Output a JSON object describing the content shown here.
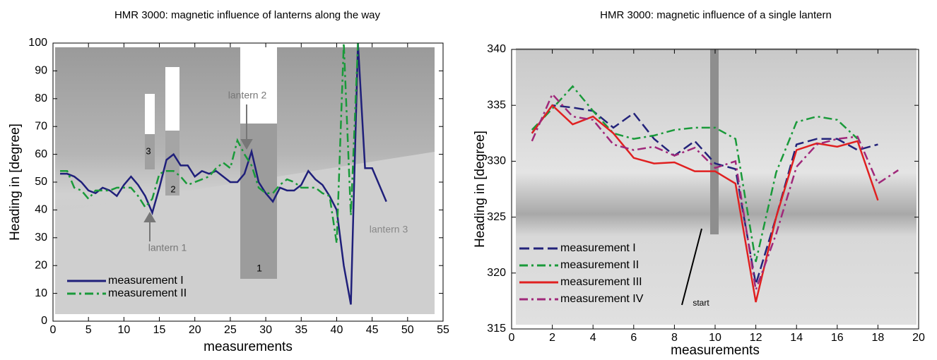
{
  "chart_data": [
    {
      "type": "line",
      "title": "HMR 3000: magnetic influence of lanterns along the way",
      "xlabel": "measurements",
      "ylabel": "Heading in [degree]",
      "xlim": [
        0,
        55
      ],
      "ylim": [
        0,
        100
      ],
      "xticks": [
        0,
        5,
        10,
        15,
        20,
        25,
        30,
        35,
        40,
        45,
        50,
        55
      ],
      "yticks": [
        0,
        10,
        20,
        30,
        40,
        50,
        60,
        70,
        80,
        90,
        100
      ],
      "x": [
        1,
        2,
        3,
        4,
        5,
        6,
        7,
        8,
        9,
        10,
        11,
        12,
        13,
        14,
        15,
        16,
        17,
        18,
        19,
        20,
        21,
        22,
        23,
        24,
        25,
        26,
        27,
        28,
        29,
        30,
        31,
        32,
        33,
        34,
        35,
        36,
        37,
        38,
        39,
        40,
        41,
        42,
        43,
        44,
        45,
        46,
        47
      ],
      "series": [
        {
          "name": "measurement I",
          "color": "#1f1f7a",
          "dash": "solid",
          "values": [
            53,
            53,
            52,
            50,
            47,
            46,
            48,
            47,
            45,
            49,
            52,
            49,
            45,
            39,
            48,
            58,
            60,
            56,
            56,
            52,
            54,
            53,
            54,
            52,
            50,
            50,
            53,
            61,
            50,
            46,
            43,
            48,
            47,
            47,
            49,
            54,
            51,
            49,
            45,
            40,
            20,
            6,
            100,
            55,
            55,
            49,
            43
          ]
        },
        {
          "name": "measurement II",
          "color": "#1a9a3a",
          "dash": "dashdot",
          "values": [
            54,
            54,
            48,
            47,
            44,
            47,
            47,
            47,
            48,
            48,
            48,
            45,
            41,
            44,
            53,
            54,
            54,
            52,
            49,
            50,
            51,
            52,
            55,
            57,
            55,
            65,
            60,
            56,
            48,
            46,
            46,
            49,
            51,
            50,
            48,
            48,
            48,
            46,
            45,
            28,
            100,
            38,
            100,
            null,
            null,
            null,
            null
          ]
        }
      ],
      "annotations": [
        "lantern 1",
        "lantern 2",
        "lantern 3",
        "1",
        "2",
        "3"
      ],
      "legend": "lower left"
    },
    {
      "type": "line",
      "title": "HMR 3000: magnetic influence of a single lantern",
      "xlabel": "measurements",
      "ylabel": "Heading in [degree]",
      "xlim": [
        0,
        20
      ],
      "ylim": [
        315,
        340
      ],
      "xticks": [
        0,
        2,
        4,
        6,
        8,
        10,
        12,
        14,
        16,
        18,
        20
      ],
      "yticks": [
        315,
        320,
        325,
        330,
        335,
        340
      ],
      "x": [
        1,
        2,
        3,
        4,
        5,
        6,
        7,
        8,
        9,
        10,
        11,
        12,
        13,
        14,
        15,
        16,
        17,
        18,
        19
      ],
      "series": [
        {
          "name": "measurement I",
          "color": "#23237a",
          "dash": "dashed",
          "values": [
            332.5,
            335,
            334.8,
            334.5,
            333,
            334.3,
            332,
            330.5,
            331.8,
            329.8,
            329.3,
            319,
            325,
            331.5,
            332,
            332,
            331,
            331.5,
            null
          ]
        },
        {
          "name": "measurement II",
          "color": "#1a9a3a",
          "dash": "dashdot",
          "values": [
            332.8,
            334.7,
            336.7,
            334.5,
            332.5,
            332,
            332.3,
            332.8,
            333,
            333,
            332,
            321,
            329,
            333.5,
            334,
            333.7,
            332,
            null,
            null
          ]
        },
        {
          "name": "measurement III",
          "color": "#e02020",
          "dash": "solid",
          "values": [
            332.5,
            335,
            333.3,
            334,
            332.5,
            330.3,
            329.8,
            329.9,
            329.1,
            329.1,
            328,
            317.4,
            325,
            331,
            331.6,
            331.3,
            331.8,
            326.5,
            null
          ]
        },
        {
          "name": "measurement IV",
          "color": "#a0287a",
          "dash": "dashdot",
          "values": [
            331.8,
            336,
            334,
            333.7,
            331.5,
            331,
            331.3,
            330.5,
            331.2,
            329.4,
            330,
            318.5,
            323.5,
            329.5,
            331.5,
            332,
            332.2,
            328,
            329.2
          ]
        }
      ],
      "annotations": [
        "start"
      ],
      "legend": "upper left"
    }
  ]
}
